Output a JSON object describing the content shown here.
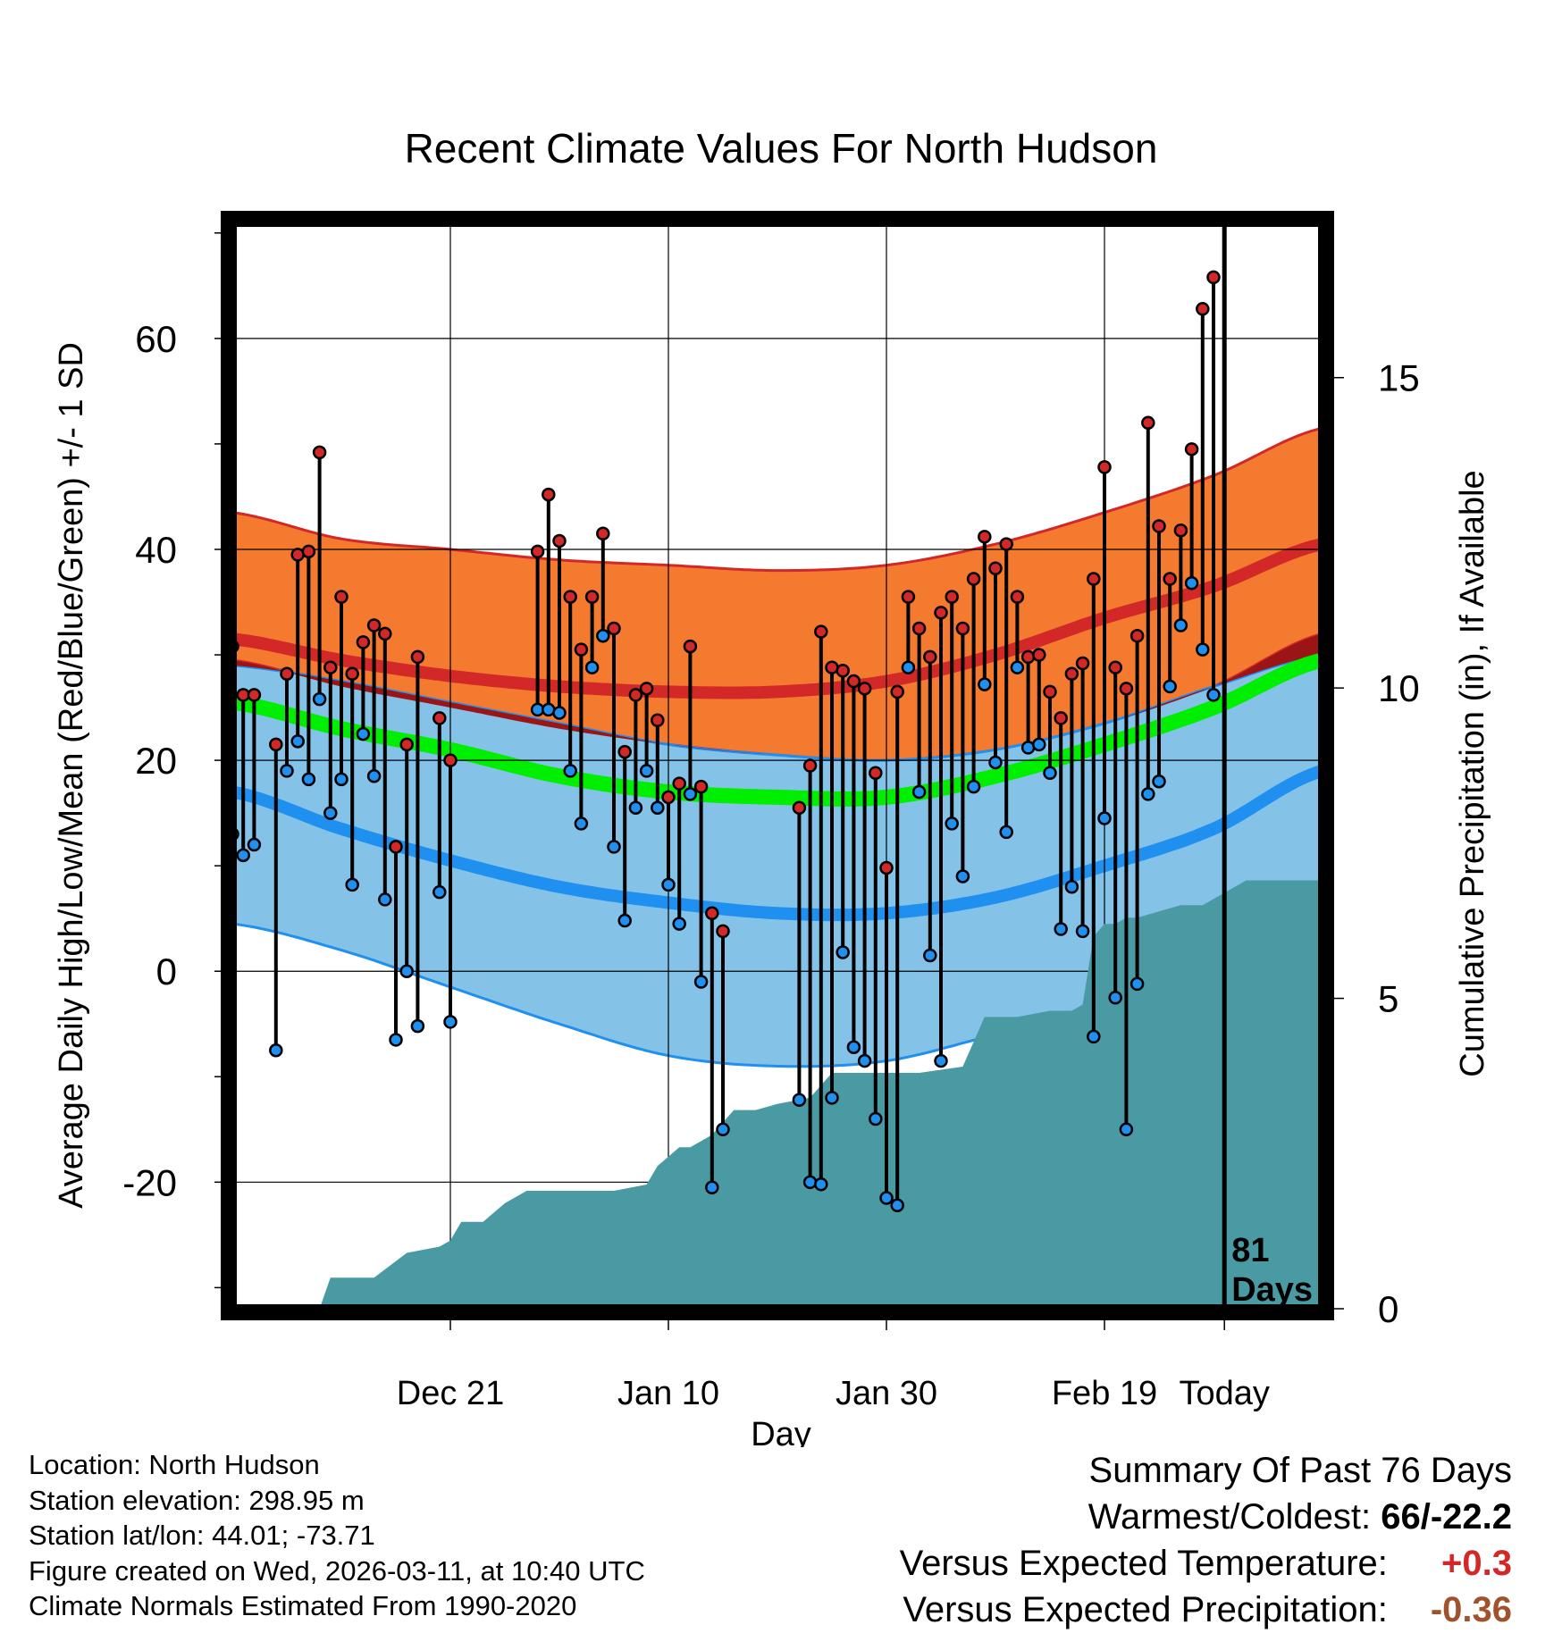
{
  "colors": {
    "high_band": "#f47a30",
    "high_line": "#d32828",
    "low_band": "#85c2e8",
    "low_line": "#1f8ff0",
    "mean_line": "#00ee00",
    "overlap_band": "#9b1416",
    "precip_fill": "#4a9aa3",
    "high_marker": "#d32828",
    "low_marker": "#1f8ff0"
  },
  "chart_data": {
    "type": "line",
    "title": "Recent Climate Values For North Hudson",
    "xlabel": "Day",
    "ylabel_left": "Average Daily High/Low/Mean (Red/Blue/Green) +/- 1 SD",
    "ylabel_right": "Cumulative Precipitation (in), If Available",
    "x_range_days": [
      -91,
      9
    ],
    "y_range": [
      -32,
      71
    ],
    "precip_range_in": [
      0,
      17.5
    ],
    "x_ticks": [
      {
        "day": -71,
        "label": "Dec 21"
      },
      {
        "day": -51,
        "label": "Jan 10"
      },
      {
        "day": -31,
        "label": "Jan 30"
      },
      {
        "day": -11,
        "label": "Feb 19"
      },
      {
        "day": 0,
        "label": "Today"
      }
    ],
    "y_ticks": [
      -20,
      0,
      20,
      40,
      60
    ],
    "y_minor_ticks": [
      -30,
      -10,
      10,
      30,
      50,
      70
    ],
    "precip_ticks": [
      0,
      5,
      10,
      15
    ],
    "today_marker": {
      "day": 0,
      "label_line1": "81",
      "label_line2": "Days"
    },
    "normals": {
      "days": [
        -91,
        -81,
        -71,
        -61,
        -51,
        -41,
        -31,
        -21,
        -11,
        -1,
        9
      ],
      "high_mean": [
        31.5,
        29.5,
        28,
        27,
        26.5,
        26.5,
        27.5,
        30,
        33.5,
        36.5,
        40.5
      ],
      "high_sd_upper": [
        43.5,
        41,
        40,
        39,
        38.5,
        38,
        38.5,
        40.5,
        43.5,
        47,
        51.5
      ],
      "high_sd_lower": [
        29.5,
        27,
        25,
        23,
        21.5,
        20.5,
        20,
        21,
        23.5,
        27,
        32
      ],
      "mean": [
        25.5,
        23,
        21,
        18.5,
        17,
        16.5,
        16.5,
        18.5,
        21.5,
        25,
        29.5
      ],
      "low_mean": [
        17,
        13.5,
        10.5,
        8,
        6.5,
        5.5,
        5.5,
        7,
        10,
        13.5,
        19
      ],
      "low_sd_upper": [
        29,
        27.5,
        25.5,
        23.5,
        21.5,
        20.5,
        20,
        21,
        23.5,
        27,
        30
      ],
      "low_sd_lower": [
        4.5,
        2,
        -1.5,
        -5,
        -8,
        -9,
        -8.5,
        -6,
        -3.5,
        0,
        8
      ]
    },
    "observations": {
      "start_day": -91,
      "high": [
        30.8,
        26.2,
        26.2,
        null,
        21.5,
        28.2,
        39.5,
        39.8,
        49.2,
        28.8,
        35.5,
        28.2,
        31.2,
        32.8,
        32.0,
        11.8,
        21.5,
        29.8,
        null,
        24.0,
        20.0,
        null,
        null,
        null,
        null,
        null,
        null,
        null,
        39.8,
        45.2,
        40.8,
        35.5,
        30.5,
        35.5,
        41.5,
        32.5,
        20.8,
        26.2,
        26.8,
        23.8,
        16.5,
        17.8,
        30.8,
        17.5,
        5.5,
        3.8,
        null,
        null,
        null,
        null,
        null,
        null,
        15.5,
        19.5,
        32.2,
        28.8,
        28.5,
        27.5,
        26.8,
        18.8,
        9.8,
        26.5,
        35.5,
        32.5,
        29.8,
        34.0,
        35.5,
        32.5,
        37.2,
        41.2,
        38.2,
        40.5,
        35.5,
        29.8,
        30.0,
        26.5,
        24.0,
        28.2,
        29.2,
        37.2,
        47.8,
        28.8,
        26.8,
        31.8,
        52.0,
        42.2,
        37.2,
        41.8,
        49.5,
        62.8,
        65.8
      ],
      "low": [
        13.0,
        11.0,
        12.0,
        null,
        -7.5,
        19.0,
        21.8,
        18.2,
        25.8,
        15.0,
        18.2,
        8.2,
        22.5,
        18.5,
        6.8,
        -6.5,
        0.0,
        -5.2,
        null,
        7.5,
        -4.8,
        null,
        null,
        null,
        null,
        null,
        null,
        null,
        24.8,
        24.8,
        24.5,
        19.0,
        14.0,
        28.8,
        31.8,
        11.8,
        4.8,
        15.5,
        19.0,
        15.5,
        8.2,
        4.5,
        16.8,
        -1.0,
        -20.5,
        -15.0,
        null,
        null,
        null,
        null,
        null,
        null,
        -12.2,
        -20.0,
        -20.2,
        -12.0,
        1.8,
        -7.2,
        -8.5,
        -14.0,
        -21.5,
        -22.2,
        28.8,
        17.0,
        1.5,
        -8.5,
        14.0,
        9.0,
        17.5,
        27.2,
        19.8,
        13.2,
        28.8,
        21.2,
        21.5,
        18.8,
        4.0,
        8.0,
        3.8,
        -6.2,
        14.5,
        -2.5,
        -15.0,
        -1.2,
        16.8,
        18.0,
        27.0,
        32.8,
        36.8,
        30.5,
        26.2
      ]
    },
    "precip_cumulative": {
      "days": [
        -83,
        -82,
        -78,
        -75,
        -72,
        -71,
        -70,
        -68,
        -66,
        -64,
        -62,
        -60,
        -58,
        -56,
        -53,
        -52,
        -50,
        -49,
        -47,
        -45,
        -43,
        -41,
        -38,
        -36,
        -33,
        -30,
        -28,
        -24,
        -22,
        -19,
        -16,
        -14,
        -13,
        -12,
        -11,
        -10,
        -9,
        -8,
        -6,
        -4,
        -2,
        0,
        2,
        9
      ],
      "values": [
        0,
        0.5,
        0.5,
        0.9,
        1.0,
        1.1,
        1.4,
        1.4,
        1.7,
        1.9,
        1.9,
        1.9,
        1.9,
        1.9,
        2.0,
        2.3,
        2.6,
        2.6,
        2.8,
        3.2,
        3.2,
        3.3,
        3.4,
        3.8,
        3.8,
        3.8,
        3.8,
        3.9,
        4.7,
        4.7,
        4.8,
        4.8,
        4.9,
        6.0,
        6.2,
        6.2,
        6.3,
        6.3,
        6.4,
        6.5,
        6.5,
        6.7,
        6.9,
        6.9
      ]
    }
  },
  "info": {
    "location": "Location: North Hudson",
    "elevation": "Station elevation: 298.95 m",
    "latlon": "Station lat/lon: 44.01; -73.71",
    "created": "Figure created on Wed, 2026-03-11, at 10:40 UTC",
    "normals": "Climate Normals Estimated From 1990-2020"
  },
  "summary": {
    "title": "Summary Of Past 76 Days",
    "warmest_label": "Warmest/Coldest:",
    "warmest_value": "66/-22.2",
    "temp_label": "Versus Expected Temperature:",
    "temp_value": "+0.3",
    "temp_color": "#d32828",
    "precip_label": "Versus Expected Precipitation:",
    "precip_value": "-0.36",
    "precip_color": "#a0522d"
  }
}
